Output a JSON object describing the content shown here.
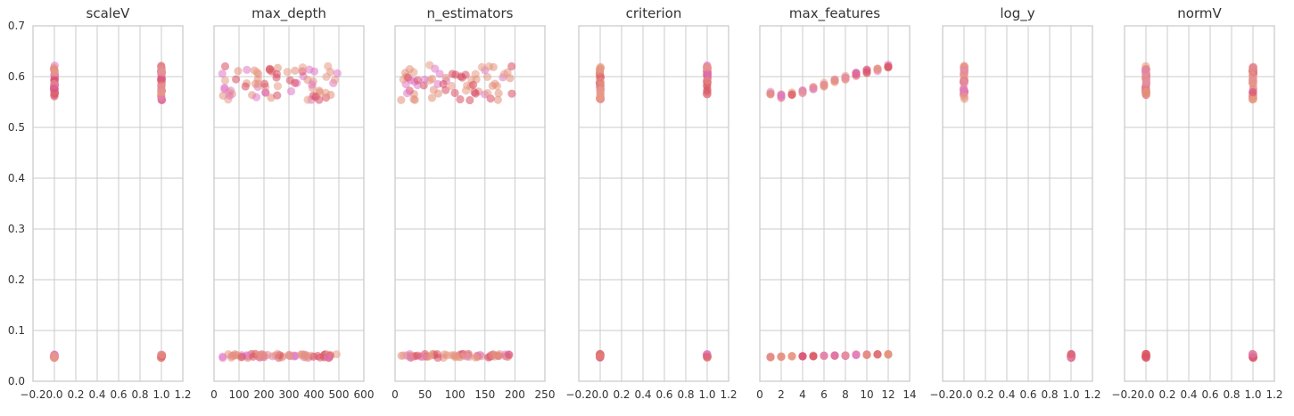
{
  "chart_data": [
    {
      "type": "scatter",
      "title": "scaleV",
      "xlim": [
        -0.2,
        1.2
      ],
      "ylim": [
        0,
        0.7
      ],
      "x_ticks": [
        "−0.2",
        "0.0",
        "0.2",
        "0.4",
        "0.6",
        "0.8",
        "1.0",
        "1.2"
      ],
      "y_ticks": [
        "0.0",
        "0.1",
        "0.2",
        "0.3",
        "0.4",
        "0.5",
        "0.6",
        "0.7"
      ],
      "bands": [
        {
          "x": 0,
          "ymin": 0.555,
          "ymax": 0.622,
          "low_ymin": 0.046,
          "low_ymax": 0.054
        },
        {
          "x": 1,
          "ymin": 0.552,
          "ymax": 0.623,
          "low_ymin": 0.046,
          "low_ymax": 0.054
        }
      ]
    },
    {
      "type": "scatter",
      "title": "max_depth",
      "xlim": [
        0,
        600
      ],
      "ylim": [
        0,
        0.7
      ],
      "x_ticks": [
        "0",
        "100",
        "200",
        "300",
        "400",
        "500",
        "600"
      ],
      "y_ticks": [],
      "spread_range": [
        30,
        495
      ],
      "high_range": [
        0.553,
        0.623
      ],
      "low_range": [
        0.046,
        0.054
      ]
    },
    {
      "type": "scatter",
      "title": "n_estimators",
      "xlim": [
        0,
        250
      ],
      "ylim": [
        0,
        0.7
      ],
      "x_ticks": [
        "0",
        "50",
        "100",
        "150",
        "200",
        "250"
      ],
      "y_ticks": [],
      "spread_range": [
        10,
        200
      ],
      "high_range": [
        0.553,
        0.623
      ],
      "low_range": [
        0.046,
        0.054
      ]
    },
    {
      "type": "scatter",
      "title": "criterion",
      "xlim": [
        -0.2,
        1.2
      ],
      "ylim": [
        0,
        0.7
      ],
      "x_ticks": [
        "−0.2",
        "0.0",
        "0.2",
        "0.4",
        "0.6",
        "0.8",
        "1.0",
        "1.2"
      ],
      "y_ticks": [],
      "bands": [
        {
          "x": 0,
          "ymin": 0.555,
          "ymax": 0.62,
          "low_ymin": 0.046,
          "low_ymax": 0.054
        },
        {
          "x": 1,
          "ymin": 0.565,
          "ymax": 0.623,
          "low_ymin": 0.046,
          "low_ymax": 0.054
        }
      ]
    },
    {
      "type": "scatter",
      "title": "max_features",
      "xlim": [
        0,
        14
      ],
      "ylim": [
        0,
        0.7
      ],
      "x_ticks": [
        "0",
        "2",
        "4",
        "6",
        "8",
        "10",
        "12",
        "14"
      ],
      "y_ticks": [],
      "trend": {
        "x": [
          1,
          2,
          3,
          4,
          5,
          6,
          7,
          8,
          9,
          10,
          11,
          12
        ],
        "high_y": [
          0.568,
          0.562,
          0.567,
          0.57,
          0.577,
          0.584,
          0.592,
          0.598,
          0.604,
          0.61,
          0.614,
          0.62
        ],
        "low_y": [
          0.048,
          0.048,
          0.049,
          0.049,
          0.05,
          0.05,
          0.051,
          0.051,
          0.052,
          0.052,
          0.053,
          0.053
        ]
      }
    },
    {
      "type": "scatter",
      "title": "log_y",
      "xlim": [
        -0.2,
        1.2
      ],
      "ylim": [
        0,
        0.7
      ],
      "x_ticks": [
        "−0.2",
        "0.0",
        "0.2",
        "0.4",
        "0.6",
        "0.8",
        "1.0",
        "1.2"
      ],
      "y_ticks": [],
      "bands": [
        {
          "x": 0,
          "ymin": 0.555,
          "ymax": 0.623
        },
        {
          "x": 1,
          "low_ymin": 0.046,
          "low_ymax": 0.054
        }
      ]
    },
    {
      "type": "scatter",
      "title": "normV",
      "xlim": [
        -0.2,
        1.2
      ],
      "ylim": [
        0,
        0.7
      ],
      "x_ticks": [
        "−0.2",
        "0.0",
        "0.2",
        "0.4",
        "0.6",
        "0.8",
        "1.0",
        "1.2"
      ],
      "y_ticks": [],
      "bands": [
        {
          "x": 0,
          "ymin": 0.563,
          "ymax": 0.623,
          "low_ymin": 0.046,
          "low_ymax": 0.054
        },
        {
          "x": 1,
          "ymin": 0.555,
          "ymax": 0.62,
          "low_ymin": 0.046,
          "low_ymax": 0.054
        }
      ]
    }
  ],
  "colors": {
    "background": "#ffffff",
    "grid": "#cbcbcb",
    "frame": "#c8c8c8",
    "text": "#333333",
    "points": [
      "#e3907a",
      "#e078c8",
      "#d94f64",
      "#e89a86"
    ]
  }
}
